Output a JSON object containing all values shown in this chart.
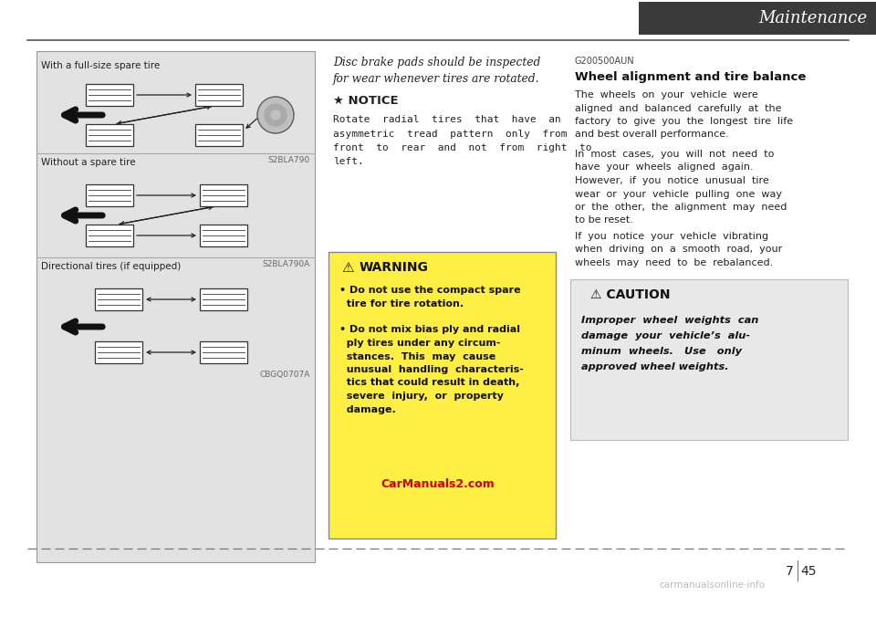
{
  "bg_color": "#ffffff",
  "header_title": "Maintenance",
  "page_number_left": "7",
  "page_number_right": "45",
  "watermark": "carmanualsonline·info",
  "watermark_color": "#bbbbbb",
  "carmanuals_url": "CarManuals2.com",
  "carmanuals_color": "#cc0000",
  "left_panel_bg": "#e0e0e0",
  "section1_label": "With a full-size spare tire",
  "section1_code": "S2BLA790",
  "section2_label": "Without a spare tire",
  "section2_code": "S2BLA790A",
  "section3_label": "Directional tires (if equipped)",
  "section3_code": "CBGQ0707A",
  "middle_italic_line1": "Disc brake pads should be inspected",
  "middle_italic_line2": "for wear whenever tires are rotated.",
  "notice_title": "NOTICE",
  "notice_body_line1": "Rotate  radial  tires  that  have  an",
  "notice_body_line2": "asymmetric  tread  pattern  only  from",
  "notice_body_line3": "front  to  rear  and  not  from  right  to",
  "notice_body_line4": "left.",
  "warning_bg": "#ffee44",
  "warning_title": "WARNING",
  "warning_b1": "Do not use the compact spare",
  "warning_b1b": "tire for tire rotation.",
  "warning_b2": "Do not mix bias ply and radial",
  "warning_b2b": "ply tires under any circum-",
  "warning_b2c": "stances.  This  may  cause",
  "warning_b2d": "unusual  handling  characteris-",
  "warning_b2e": "tics that could result in death,",
  "warning_b2f": "severe  injury,  or  property",
  "warning_b2g": "damage.",
  "right_code": "G200500AUN",
  "right_title": "Wheel alignment and tire balance",
  "right_p1a": "The  wheels  on  your  vehicle  were",
  "right_p1b": "aligned  and  balanced  carefully  at  the",
  "right_p1c": "factory  to  give  you  the  longest  tire  life",
  "right_p1d": "and best overall performance.",
  "right_p2a": "In  most  cases,  you  will  not  need  to",
  "right_p2b": "have  your  wheels  aligned  again.",
  "right_p2c": "However,  if  you  notice  unusual  tire",
  "right_p2d": "wear  or  your  vehicle  pulling  one  way",
  "right_p2e": "or  the  other,  the  alignment  may  need",
  "right_p2f": "to be reset.",
  "right_p3a": "If  you  notice  your  vehicle  vibrating",
  "right_p3b": "when  driving  on  a  smooth  road,  your",
  "right_p3c": "wheels  may  need  to  be  rebalanced.",
  "caution_bg": "#e8e8e8",
  "caution_title": "CAUTION",
  "caution_b1": "Improper  wheel  weights  can",
  "caution_b2": "damage  your  vehicle’s  alu-",
  "caution_b3": "minum  wheels.   Use   only",
  "caution_b4": "approved wheel weights."
}
